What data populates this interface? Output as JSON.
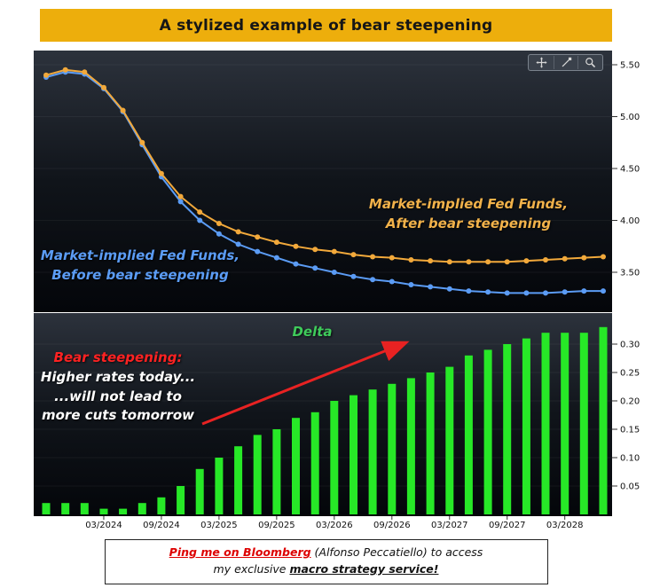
{
  "banner": {
    "text": "A stylized example of bear steepening",
    "bg_color": "#EDAE0C",
    "text_color": "#161616"
  },
  "toolbar": {
    "buttons": [
      {
        "name": "pan"
      },
      {
        "name": "draw-line"
      },
      {
        "name": "zoom"
      }
    ],
    "icon_color": "#d8d8d8"
  },
  "annotations": {
    "after_label_line1": "Market-implied Fed Funds,",
    "after_label_line2": "After bear steepening",
    "after_color": "#f2b24a",
    "before_label_line1": "Market-implied Fed Funds,",
    "before_label_line2": "Before bear steepening",
    "before_color": "#5b9cf5",
    "delta_label": "Delta",
    "delta_color": "#3fcb5b",
    "bear_title": "Bear steepening:",
    "bear_title_color": "#ff2222",
    "bear_text_color": "#ffffff",
    "bear_line1": "Higher rates today...",
    "bear_line2": "...will not lead to",
    "bear_line3": "more cuts tomorrow",
    "arrow_color": "#e82222"
  },
  "footer": {
    "line1_red": "Ping me on Bloomberg",
    "line1_rest": " (Alfonso Peccatiello) to access",
    "line2_prefix": "my exclusive ",
    "line2_bold": "macro strategy service!",
    "link_color": "#dd0000"
  },
  "chart_data": {
    "type": "combo",
    "x_tick_labels": [
      "03/2024",
      "09/2024",
      "03/2025",
      "09/2025",
      "03/2026",
      "09/2026",
      "03/2027",
      "09/2027",
      "03/2028"
    ],
    "x_tick_point_indices": [
      3,
      6,
      9,
      12,
      15,
      18,
      21,
      24,
      27
    ],
    "top_panel": {
      "type": "line",
      "ylim": [
        3.2,
        5.6
      ],
      "yticks": [
        5.5,
        5.0,
        4.5,
        4.0,
        3.5
      ],
      "legend_position": "annotated-on-chart",
      "grid": false,
      "series": [
        {
          "name": "Market-implied Fed Funds, Before bear steepening",
          "color": "#5b9cf5",
          "values": [
            5.38,
            5.43,
            5.41,
            5.27,
            5.05,
            4.73,
            4.42,
            4.18,
            4.0,
            3.87,
            3.77,
            3.7,
            3.64,
            3.58,
            3.54,
            3.5,
            3.46,
            3.43,
            3.41,
            3.38,
            3.36,
            3.34,
            3.32,
            3.31,
            3.3,
            3.3,
            3.3,
            3.31,
            3.32,
            3.32
          ]
        },
        {
          "name": "Market-implied Fed Funds, After bear steepening",
          "color": "#f2a93b",
          "values": [
            5.4,
            5.45,
            5.43,
            5.28,
            5.06,
            4.75,
            4.45,
            4.23,
            4.08,
            3.97,
            3.89,
            3.84,
            3.79,
            3.75,
            3.72,
            3.7,
            3.67,
            3.65,
            3.64,
            3.62,
            3.61,
            3.6,
            3.6,
            3.6,
            3.6,
            3.61,
            3.62,
            3.63,
            3.64,
            3.65
          ]
        }
      ]
    },
    "bottom_panel": {
      "type": "bar",
      "name": "Delta",
      "color": "#27e827",
      "ylim": [
        0,
        0.34
      ],
      "yticks": [
        0.3,
        0.25,
        0.2,
        0.15,
        0.1,
        0.05
      ],
      "grid": false,
      "values": [
        0.02,
        0.02,
        0.02,
        0.01,
        0.01,
        0.02,
        0.03,
        0.05,
        0.08,
        0.1,
        0.12,
        0.14,
        0.15,
        0.17,
        0.18,
        0.2,
        0.21,
        0.22,
        0.23,
        0.24,
        0.25,
        0.26,
        0.28,
        0.29,
        0.3,
        0.31,
        0.32,
        0.32,
        0.32,
        0.33
      ]
    }
  }
}
